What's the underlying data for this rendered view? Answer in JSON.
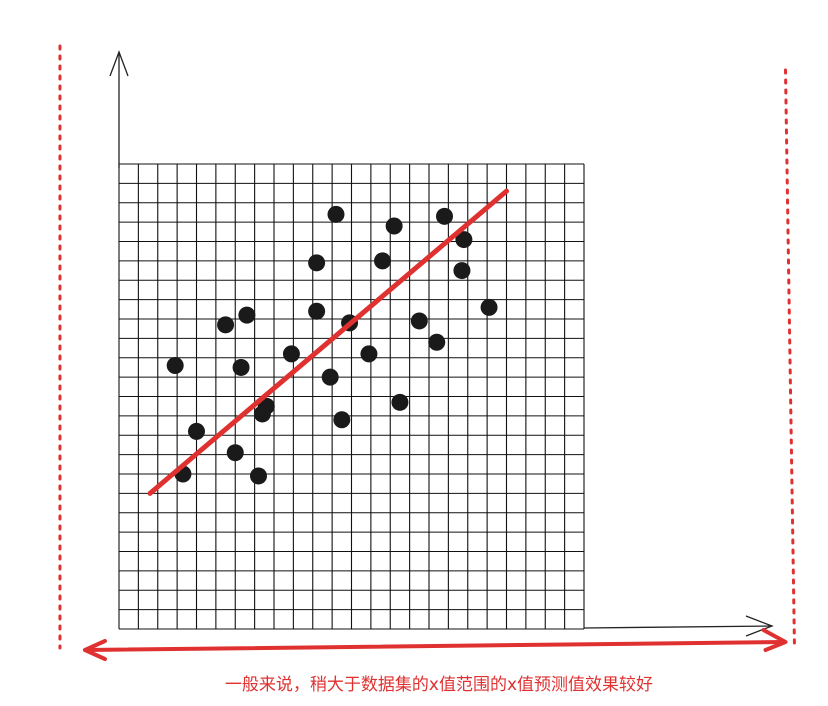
{
  "colors": {
    "grid": "#111111",
    "points": "#1a1a1a",
    "fit_line": "#e03131",
    "range_marker": "#e03131",
    "caption_text": "#e03131",
    "axis": "#222222"
  },
  "icons": {
    "y_axis_arrow": "arrow-up-icon",
    "x_axis_arrow": "arrow-right-icon",
    "range_arrow": "double-headed-arrow-icon"
  },
  "chart_data": {
    "type": "scatter",
    "title": "",
    "xlabel": "",
    "ylabel": "",
    "grid": true,
    "grid_cells": {
      "columns": 24,
      "rows": 24
    },
    "xlim": [
      0,
      24
    ],
    "ylim": [
      0,
      24
    ],
    "points": [
      {
        "x": 2.9,
        "y": 13.6
      },
      {
        "x": 5.5,
        "y": 15.7
      },
      {
        "x": 6.6,
        "y": 16.2
      },
      {
        "x": 6.3,
        "y": 13.5
      },
      {
        "x": 3.3,
        "y": 8.0
      },
      {
        "x": 4.0,
        "y": 10.2
      },
      {
        "x": 6.0,
        "y": 9.1
      },
      {
        "x": 7.2,
        "y": 7.9
      },
      {
        "x": 7.4,
        "y": 11.1
      },
      {
        "x": 7.6,
        "y": 11.5
      },
      {
        "x": 8.9,
        "y": 14.2
      },
      {
        "x": 10.2,
        "y": 16.4
      },
      {
        "x": 10.2,
        "y": 18.9
      },
      {
        "x": 11.2,
        "y": 21.4
      },
      {
        "x": 10.9,
        "y": 13.0
      },
      {
        "x": 11.5,
        "y": 10.8
      },
      {
        "x": 11.9,
        "y": 15.8
      },
      {
        "x": 12.9,
        "y": 14.2
      },
      {
        "x": 13.6,
        "y": 19.0
      },
      {
        "x": 14.2,
        "y": 20.8
      },
      {
        "x": 14.5,
        "y": 11.7
      },
      {
        "x": 15.5,
        "y": 15.9
      },
      {
        "x": 16.4,
        "y": 14.8
      },
      {
        "x": 16.8,
        "y": 21.3
      },
      {
        "x": 17.7,
        "y": 18.5
      },
      {
        "x": 17.8,
        "y": 20.1
      },
      {
        "x": 19.1,
        "y": 16.6
      }
    ],
    "fit_line": {
      "x": [
        1.6,
        20.0
      ],
      "y": [
        7.0,
        22.6
      ]
    },
    "plotted_range": {
      "x": [
        -3.1,
        34.4
      ]
    }
  },
  "caption": {
    "text": "一般来说，稍大于数据集的x值范围的x值预测值效果较好"
  }
}
